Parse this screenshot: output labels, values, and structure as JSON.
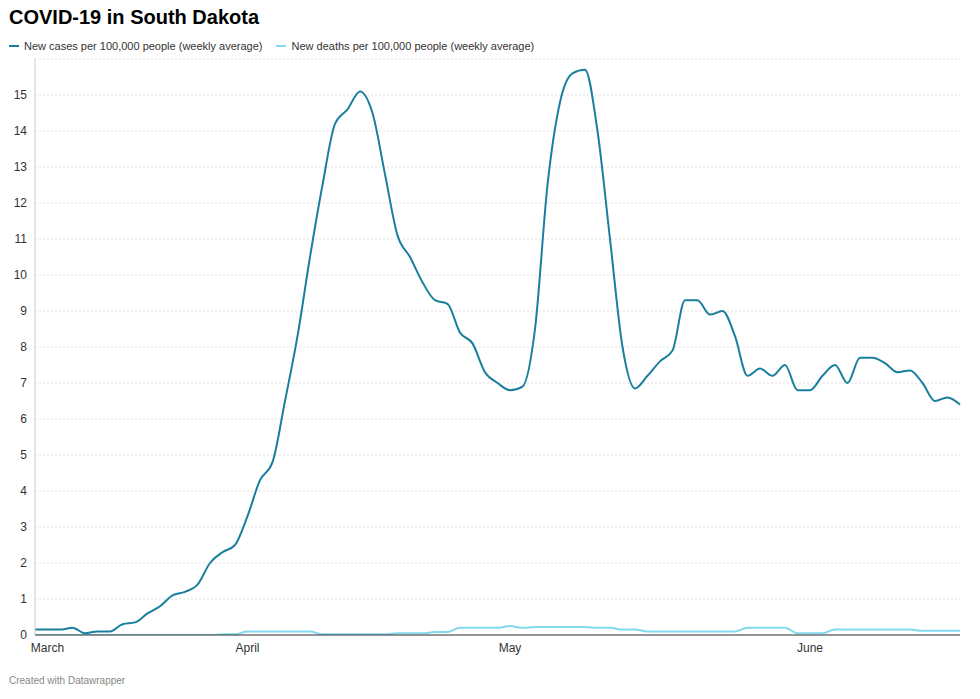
{
  "chart_data": {
    "type": "line",
    "title": "COVID-19 in South Dakota",
    "caption": "Created with Datawrapper",
    "categories": [
      null,
      "March",
      null,
      null,
      null,
      null,
      null,
      null,
      null,
      null,
      null,
      null,
      null,
      null,
      null,
      null,
      null,
      "April",
      null,
      null,
      null,
      null,
      null,
      null,
      null,
      null,
      null,
      null,
      null,
      null,
      null,
      null,
      null,
      null,
      null,
      null,
      null,
      null,
      "May",
      null,
      null,
      null,
      null,
      null,
      null,
      null,
      null,
      null,
      null,
      null,
      null,
      null,
      null,
      null,
      null,
      null,
      null,
      null,
      null,
      null,
      null,
      null,
      "June",
      null,
      null,
      null,
      null,
      null,
      null,
      null,
      null,
      null,
      null,
      null,
      null
    ],
    "series": [
      {
        "name": "New cases per 100,000 people (weekly average)",
        "color": "#1a7f9e",
        "values": [
          0.15,
          0.15,
          0.15,
          0.2,
          0.05,
          0.1,
          0.1,
          0.3,
          0.35,
          0.6,
          0.8,
          1.1,
          1.2,
          1.4,
          2,
          2.3,
          2.5,
          3.3,
          4.3,
          4.8,
          6.5,
          8.3,
          10.5,
          12.5,
          14.2,
          14.6,
          15.1,
          14.5,
          12.8,
          11.1,
          10.5,
          9.8,
          9.3,
          9.2,
          8.4,
          8.1,
          7.3,
          7,
          6.8,
          6.9,
          8.5,
          12.5,
          14.8,
          15.6,
          15.7,
          14,
          11,
          8,
          6.85,
          7.2,
          7.6,
          7.9,
          9.3,
          9.3,
          8.9,
          9,
          8.3,
          7.2,
          7.4,
          7.2,
          7.5,
          6.8,
          6.8,
          7.2,
          7.5,
          7,
          7.7,
          7.7,
          7.55,
          7.3,
          7.35,
          7,
          6.5,
          6.6,
          6.4
        ]
      },
      {
        "name": "New deaths per 100,000 people (weekly average)",
        "color": "#84d9ef",
        "values": [
          0,
          0,
          0,
          0,
          0,
          0,
          0,
          0,
          0,
          0,
          0,
          0,
          0,
          0,
          0,
          0.02,
          0.02,
          0.1,
          0.1,
          0.1,
          0.1,
          0.1,
          0.1,
          0.02,
          0.02,
          0.02,
          0.02,
          0.02,
          0.02,
          0.05,
          0.05,
          0.05,
          0.08,
          0.08,
          0.2,
          0.2,
          0.2,
          0.2,
          0.25,
          0.2,
          0.22,
          0.22,
          0.22,
          0.22,
          0.22,
          0.2,
          0.2,
          0.15,
          0.15,
          0.1,
          0.1,
          0.1,
          0.1,
          0.1,
          0.1,
          0.1,
          0.1,
          0.2,
          0.2,
          0.2,
          0.2,
          0.05,
          0.05,
          0.05,
          0.15,
          0.15,
          0.15,
          0.15,
          0.15,
          0.15,
          0.15,
          0.12,
          0.12,
          0.12,
          0.12
        ]
      }
    ],
    "ylim": [
      0,
      16
    ],
    "yticks": [
      0,
      1,
      2,
      3,
      4,
      5,
      6,
      7,
      8,
      9,
      10,
      11,
      12,
      13,
      14,
      15
    ],
    "grid": true
  }
}
